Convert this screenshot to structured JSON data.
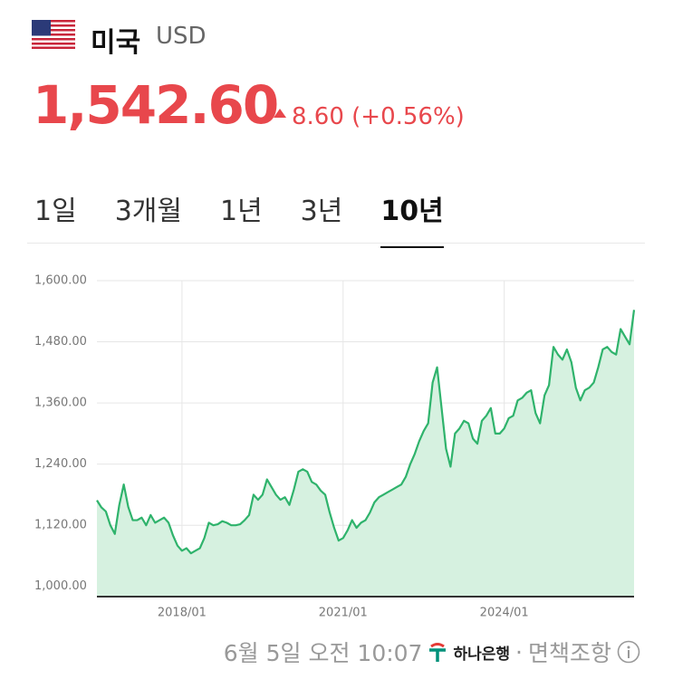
{
  "header": {
    "country": "미국",
    "currency": "USD",
    "price": "1,542.60",
    "change": "8.60",
    "change_pct": "(+0.56%)"
  },
  "tabs": [
    "1일",
    "3개월",
    "1년",
    "3년",
    "10년"
  ],
  "selected_tab": 4,
  "chart_data": {
    "type": "area",
    "color": "#2fb36c",
    "fill_color": "#d6f1e0",
    "x": [
      "2016/06",
      "2016/07",
      "2016/08",
      "2016/09",
      "2016/10",
      "2016/11",
      "2016/12",
      "2017/01",
      "2017/02",
      "2017/03",
      "2017/04",
      "2017/05",
      "2017/06",
      "2017/07",
      "2017/08",
      "2017/09",
      "2017/10",
      "2017/11",
      "2017/12",
      "2018/01",
      "2018/02",
      "2018/03",
      "2018/04",
      "2018/05",
      "2018/06",
      "2018/07",
      "2018/08",
      "2018/09",
      "2018/10",
      "2018/11",
      "2018/12",
      "2019/01",
      "2019/02",
      "2019/03",
      "2019/04",
      "2019/05",
      "2019/06",
      "2019/07",
      "2019/08",
      "2019/09",
      "2019/10",
      "2019/11",
      "2019/12",
      "2020/01",
      "2020/02",
      "2020/03",
      "2020/04",
      "2020/05",
      "2020/06",
      "2020/07",
      "2020/08",
      "2020/09",
      "2020/10",
      "2020/11",
      "2020/12",
      "2021/01",
      "2021/02",
      "2021/03",
      "2021/04",
      "2021/05",
      "2021/06",
      "2021/07",
      "2021/08",
      "2021/09",
      "2021/10",
      "2021/11",
      "2021/12",
      "2022/01",
      "2022/02",
      "2022/03",
      "2022/04",
      "2022/05",
      "2022/06",
      "2022/07",
      "2022/08",
      "2022/09",
      "2022/10",
      "2022/11",
      "2022/12",
      "2023/01",
      "2023/02",
      "2023/03",
      "2023/04",
      "2023/05",
      "2023/06",
      "2023/07",
      "2023/08",
      "2023/09",
      "2023/10",
      "2023/11",
      "2023/12",
      "2024/01",
      "2024/02",
      "2024/03",
      "2024/04",
      "2024/05",
      "2024/06",
      "2024/07",
      "2024/08",
      "2024/09",
      "2024/10",
      "2024/11",
      "2024/12",
      "2025/01",
      "2025/02",
      "2025/03",
      "2025/04",
      "2025/05",
      "2025/06",
      "2025/07",
      "2025/08",
      "2025/09",
      "2025/10",
      "2025/11",
      "2025/12",
      "2026/01",
      "2026/02",
      "2026/03",
      "2026/04",
      "2026/05",
      "2026/06"
    ],
    "values": [
      1169,
      1155,
      1147,
      1120,
      1103,
      1160,
      1200,
      1156,
      1130,
      1130,
      1135,
      1120,
      1140,
      1125,
      1130,
      1135,
      1125,
      1100,
      1080,
      1070,
      1075,
      1065,
      1070,
      1075,
      1095,
      1125,
      1120,
      1122,
      1128,
      1125,
      1120,
      1120,
      1122,
      1130,
      1140,
      1180,
      1170,
      1180,
      1210,
      1195,
      1180,
      1170,
      1175,
      1160,
      1190,
      1225,
      1230,
      1225,
      1205,
      1200,
      1188,
      1180,
      1145,
      1115,
      1090,
      1095,
      1110,
      1130,
      1115,
      1125,
      1130,
      1145,
      1165,
      1175,
      1180,
      1185,
      1190,
      1195,
      1200,
      1215,
      1240,
      1260,
      1285,
      1305,
      1320,
      1400,
      1430,
      1350,
      1270,
      1235,
      1300,
      1310,
      1325,
      1320,
      1290,
      1280,
      1325,
      1335,
      1350,
      1300,
      1300,
      1310,
      1330,
      1335,
      1365,
      1370,
      1380,
      1385,
      1340,
      1320,
      1375,
      1395,
      1470,
      1455,
      1445,
      1465,
      1440,
      1390,
      1365,
      1385,
      1390,
      1400,
      1430,
      1465,
      1470,
      1460,
      1455,
      1505,
      1490,
      1475,
      1542.6
    ],
    "xlim": [
      "2016/06",
      "2026/06"
    ],
    "xticks": [
      "2018/01",
      "2021/01",
      "2024/01"
    ],
    "ylim": [
      980,
      1600
    ],
    "yticks": [
      {
        "value": 1000,
        "label": "1,000.00"
      },
      {
        "value": 1120,
        "label": "1,120.00"
      },
      {
        "value": 1240,
        "label": "1,240.00"
      },
      {
        "value": 1360,
        "label": "1,360.00"
      },
      {
        "value": 1480,
        "label": "1,480.00"
      },
      {
        "value": 1600,
        "label": "1,600.00"
      }
    ],
    "grid": true
  },
  "footer": {
    "timestamp": "6월 5일 오전 10:07",
    "bank": "하나은행",
    "separator": "·",
    "disclaimer": "면책조항"
  }
}
